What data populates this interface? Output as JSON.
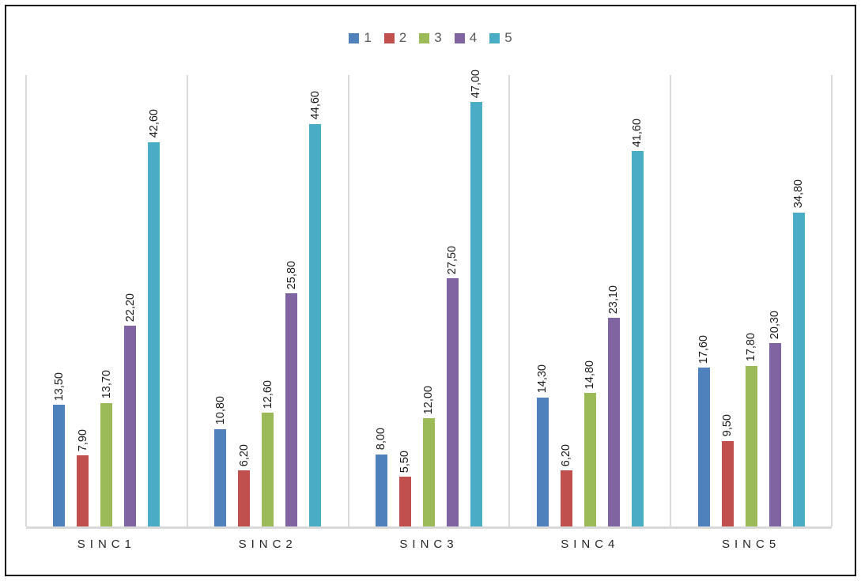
{
  "chart_data": {
    "type": "bar",
    "title": "",
    "xlabel": "",
    "ylabel": "",
    "ylim": [
      0,
      50
    ],
    "legend_position": "top-center",
    "value_labels_visible": true,
    "value_label_rotation": "vertical",
    "decimal_separator": ",",
    "grid": "vertical-category-separators",
    "gridline_color": "#d9d9d9",
    "axis_line_color": "#d9d9d9",
    "categories": [
      "SINC1",
      "SINC2",
      "SINC3",
      "SINC4",
      "SINC5"
    ],
    "series": [
      {
        "name": "1",
        "color": "#4F81BD",
        "values": [
          13.5,
          10.8,
          8.0,
          14.3,
          17.6
        ],
        "labels": [
          "13,50",
          "10,80",
          "8,00",
          "14,30",
          "17,60"
        ]
      },
      {
        "name": "2",
        "color": "#C0504D",
        "values": [
          7.9,
          6.2,
          5.5,
          6.2,
          9.5
        ],
        "labels": [
          "7,90",
          "6,20",
          "5,50",
          "6,20",
          "9,50"
        ]
      },
      {
        "name": "3",
        "color": "#9BBB59",
        "values": [
          13.7,
          12.6,
          12.0,
          14.8,
          17.8
        ],
        "labels": [
          "13,70",
          "12,60",
          "12,00",
          "14,80",
          "17,80"
        ]
      },
      {
        "name": "4",
        "color": "#8064A2",
        "values": [
          22.2,
          25.8,
          27.5,
          23.1,
          20.3
        ],
        "labels": [
          "22,20",
          "25,80",
          "27,50",
          "23,10",
          "20,30"
        ]
      },
      {
        "name": "5",
        "color": "#4BACC6",
        "values": [
          42.6,
          44.6,
          47.0,
          41.6,
          34.8
        ],
        "labels": [
          "42,60",
          "44,60",
          "47,00",
          "41,60",
          "34,80"
        ]
      }
    ]
  }
}
